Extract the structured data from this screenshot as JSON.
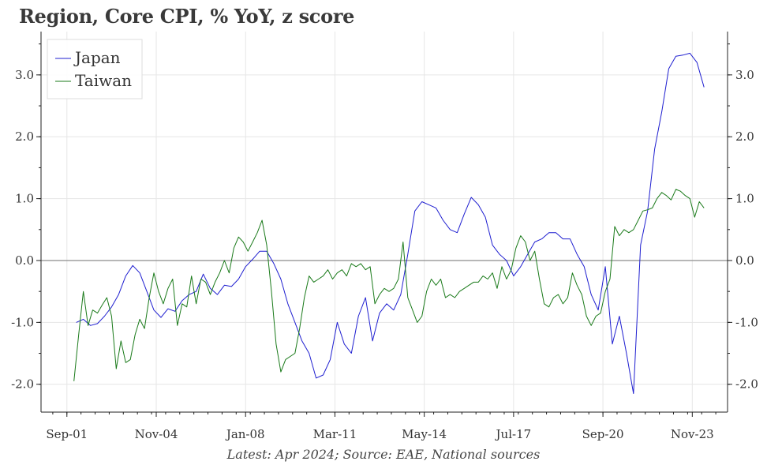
{
  "title": "Region, Core CPI, % YoY, z score",
  "footer": "Latest: Apr 2024; Source: EAE, National sources",
  "chart_data": {
    "type": "line",
    "title": "Region, Core CPI, % YoY, z score",
    "xlabel": "",
    "ylabel": "",
    "x_tick_labels": [
      "Sep-01",
      "Nov-04",
      "Jan-08",
      "Mar-11",
      "May-14",
      "Jul-17",
      "Sep-20",
      "Nov-23"
    ],
    "x_tick_dates": [
      "2001-09",
      "2004-11",
      "2008-01",
      "2011-03",
      "2014-05",
      "2017-07",
      "2020-09",
      "2023-11"
    ],
    "xlim": [
      "2000-10",
      "2025-02"
    ],
    "ylim": [
      -2.45,
      3.7
    ],
    "y_ticks": [
      -2.0,
      -1.0,
      0.0,
      1.0,
      2.0,
      3.0
    ],
    "y_tick_labels": [
      "-2.0",
      "-1.0",
      "0.0",
      "1.0",
      "2.0",
      "3.0"
    ],
    "grid": true,
    "legend_position": "top-left",
    "series": [
      {
        "name": "Japan",
        "color": "#1f1fd0",
        "points": [
          [
            "2002-01",
            -1.0
          ],
          [
            "2002-04",
            -0.95
          ],
          [
            "2002-07",
            -1.05
          ],
          [
            "2002-10",
            -1.02
          ],
          [
            "2003-01",
            -0.9
          ],
          [
            "2003-04",
            -0.75
          ],
          [
            "2003-07",
            -0.55
          ],
          [
            "2003-10",
            -0.25
          ],
          [
            "2004-01",
            -0.08
          ],
          [
            "2004-04",
            -0.2
          ],
          [
            "2004-07",
            -0.5
          ],
          [
            "2004-10",
            -0.8
          ],
          [
            "2005-01",
            -0.92
          ],
          [
            "2005-04",
            -0.78
          ],
          [
            "2005-07",
            -0.82
          ],
          [
            "2005-10",
            -0.65
          ],
          [
            "2006-01",
            -0.55
          ],
          [
            "2006-04",
            -0.5
          ],
          [
            "2006-07",
            -0.22
          ],
          [
            "2006-10",
            -0.45
          ],
          [
            "2007-01",
            -0.55
          ],
          [
            "2007-04",
            -0.4
          ],
          [
            "2007-07",
            -0.42
          ],
          [
            "2007-10",
            -0.3
          ],
          [
            "2008-01",
            -0.1
          ],
          [
            "2008-04",
            0.02
          ],
          [
            "2008-07",
            0.15
          ],
          [
            "2008-10",
            0.15
          ],
          [
            "2009-01",
            -0.05
          ],
          [
            "2009-04",
            -0.3
          ],
          [
            "2009-07",
            -0.7
          ],
          [
            "2009-10",
            -1.0
          ],
          [
            "2010-01",
            -1.3
          ],
          [
            "2010-04",
            -1.5
          ],
          [
            "2010-07",
            -1.9
          ],
          [
            "2010-10",
            -1.85
          ],
          [
            "2011-01",
            -1.6
          ],
          [
            "2011-04",
            -1.0
          ],
          [
            "2011-07",
            -1.35
          ],
          [
            "2011-10",
            -1.5
          ],
          [
            "2012-01",
            -0.9
          ],
          [
            "2012-04",
            -0.6
          ],
          [
            "2012-07",
            -1.3
          ],
          [
            "2012-10",
            -0.85
          ],
          [
            "2013-01",
            -0.7
          ],
          [
            "2013-04",
            -0.8
          ],
          [
            "2013-07",
            -0.55
          ],
          [
            "2013-10",
            0.1
          ],
          [
            "2014-01",
            0.8
          ],
          [
            "2014-04",
            0.95
          ],
          [
            "2014-07",
            0.9
          ],
          [
            "2014-10",
            0.85
          ],
          [
            "2015-01",
            0.65
          ],
          [
            "2015-04",
            0.5
          ],
          [
            "2015-07",
            0.45
          ],
          [
            "2015-10",
            0.75
          ],
          [
            "2016-01",
            1.02
          ],
          [
            "2016-04",
            0.9
          ],
          [
            "2016-07",
            0.7
          ],
          [
            "2016-10",
            0.25
          ],
          [
            "2017-01",
            0.1
          ],
          [
            "2017-04",
            0.0
          ],
          [
            "2017-07",
            -0.25
          ],
          [
            "2017-10",
            -0.1
          ],
          [
            "2018-01",
            0.1
          ],
          [
            "2018-04",
            0.3
          ],
          [
            "2018-07",
            0.35
          ],
          [
            "2018-10",
            0.45
          ],
          [
            "2019-01",
            0.45
          ],
          [
            "2019-04",
            0.35
          ],
          [
            "2019-07",
            0.35
          ],
          [
            "2019-10",
            0.1
          ],
          [
            "2020-01",
            -0.1
          ],
          [
            "2020-04",
            -0.55
          ],
          [
            "2020-07",
            -0.8
          ],
          [
            "2020-10",
            -0.1
          ],
          [
            "2021-01",
            -1.35
          ],
          [
            "2021-04",
            -0.9
          ],
          [
            "2021-07",
            -1.5
          ],
          [
            "2021-10",
            -2.15
          ],
          [
            "2022-01",
            0.25
          ],
          [
            "2022-04",
            0.8
          ],
          [
            "2022-07",
            1.8
          ],
          [
            "2022-10",
            2.4
          ],
          [
            "2023-01",
            3.1
          ],
          [
            "2023-04",
            3.3
          ],
          [
            "2023-07",
            3.32
          ],
          [
            "2023-10",
            3.35
          ],
          [
            "2024-01",
            3.2
          ],
          [
            "2024-04",
            2.8
          ]
        ]
      },
      {
        "name": "Taiwan",
        "color": "#1a7a1a",
        "points": [
          [
            "2001-12",
            -1.95
          ],
          [
            "2002-02",
            -1.2
          ],
          [
            "2002-04",
            -0.5
          ],
          [
            "2002-06",
            -1.05
          ],
          [
            "2002-08",
            -0.8
          ],
          [
            "2002-10",
            -0.85
          ],
          [
            "2002-12",
            -0.72
          ],
          [
            "2003-02",
            -0.6
          ],
          [
            "2003-04",
            -0.9
          ],
          [
            "2003-06",
            -1.75
          ],
          [
            "2003-08",
            -1.3
          ],
          [
            "2003-10",
            -1.65
          ],
          [
            "2003-12",
            -1.6
          ],
          [
            "2004-02",
            -1.2
          ],
          [
            "2004-04",
            -0.95
          ],
          [
            "2004-06",
            -1.1
          ],
          [
            "2004-08",
            -0.6
          ],
          [
            "2004-10",
            -0.2
          ],
          [
            "2004-12",
            -0.5
          ],
          [
            "2005-02",
            -0.7
          ],
          [
            "2005-04",
            -0.45
          ],
          [
            "2005-06",
            -0.3
          ],
          [
            "2005-08",
            -1.05
          ],
          [
            "2005-10",
            -0.7
          ],
          [
            "2005-12",
            -0.75
          ],
          [
            "2006-02",
            -0.25
          ],
          [
            "2006-04",
            -0.7
          ],
          [
            "2006-06",
            -0.3
          ],
          [
            "2006-08",
            -0.35
          ],
          [
            "2006-10",
            -0.55
          ],
          [
            "2006-12",
            -0.35
          ],
          [
            "2007-02",
            -0.2
          ],
          [
            "2007-04",
            0.0
          ],
          [
            "2007-06",
            -0.2
          ],
          [
            "2007-08",
            0.2
          ],
          [
            "2007-10",
            0.38
          ],
          [
            "2007-12",
            0.3
          ],
          [
            "2008-02",
            0.15
          ],
          [
            "2008-04",
            0.3
          ],
          [
            "2008-06",
            0.45
          ],
          [
            "2008-08",
            0.65
          ],
          [
            "2008-10",
            0.25
          ],
          [
            "2008-12",
            -0.5
          ],
          [
            "2009-02",
            -1.35
          ],
          [
            "2009-04",
            -1.8
          ],
          [
            "2009-06",
            -1.6
          ],
          [
            "2009-08",
            -1.55
          ],
          [
            "2009-10",
            -1.5
          ],
          [
            "2009-12",
            -1.1
          ],
          [
            "2010-02",
            -0.6
          ],
          [
            "2010-04",
            -0.25
          ],
          [
            "2010-06",
            -0.35
          ],
          [
            "2010-08",
            -0.3
          ],
          [
            "2010-10",
            -0.25
          ],
          [
            "2010-12",
            -0.15
          ],
          [
            "2011-02",
            -0.3
          ],
          [
            "2011-04",
            -0.2
          ],
          [
            "2011-06",
            -0.15
          ],
          [
            "2011-08",
            -0.25
          ],
          [
            "2011-10",
            -0.05
          ],
          [
            "2011-12",
            -0.1
          ],
          [
            "2012-02",
            -0.05
          ],
          [
            "2012-04",
            -0.15
          ],
          [
            "2012-06",
            -0.1
          ],
          [
            "2012-08",
            -0.7
          ],
          [
            "2012-10",
            -0.55
          ],
          [
            "2012-12",
            -0.45
          ],
          [
            "2013-02",
            -0.5
          ],
          [
            "2013-04",
            -0.45
          ],
          [
            "2013-06",
            -0.3
          ],
          [
            "2013-08",
            0.3
          ],
          [
            "2013-10",
            -0.6
          ],
          [
            "2013-12",
            -0.8
          ],
          [
            "2014-02",
            -1.0
          ],
          [
            "2014-04",
            -0.9
          ],
          [
            "2014-06",
            -0.5
          ],
          [
            "2014-08",
            -0.3
          ],
          [
            "2014-10",
            -0.4
          ],
          [
            "2014-12",
            -0.3
          ],
          [
            "2015-02",
            -0.6
          ],
          [
            "2015-04",
            -0.55
          ],
          [
            "2015-06",
            -0.6
          ],
          [
            "2015-08",
            -0.5
          ],
          [
            "2015-10",
            -0.45
          ],
          [
            "2015-12",
            -0.4
          ],
          [
            "2016-02",
            -0.35
          ],
          [
            "2016-04",
            -0.35
          ],
          [
            "2016-06",
            -0.25
          ],
          [
            "2016-08",
            -0.3
          ],
          [
            "2016-10",
            -0.2
          ],
          [
            "2016-12",
            -0.45
          ],
          [
            "2017-02",
            -0.1
          ],
          [
            "2017-04",
            -0.3
          ],
          [
            "2017-06",
            -0.15
          ],
          [
            "2017-08",
            0.2
          ],
          [
            "2017-10",
            0.4
          ],
          [
            "2017-12",
            0.3
          ],
          [
            "2018-02",
            0.0
          ],
          [
            "2018-04",
            0.15
          ],
          [
            "2018-06",
            -0.3
          ],
          [
            "2018-08",
            -0.7
          ],
          [
            "2018-10",
            -0.75
          ],
          [
            "2018-12",
            -0.6
          ],
          [
            "2019-02",
            -0.55
          ],
          [
            "2019-04",
            -0.7
          ],
          [
            "2019-06",
            -0.6
          ],
          [
            "2019-08",
            -0.2
          ],
          [
            "2019-10",
            -0.4
          ],
          [
            "2019-12",
            -0.55
          ],
          [
            "2020-02",
            -0.9
          ],
          [
            "2020-04",
            -1.05
          ],
          [
            "2020-06",
            -0.9
          ],
          [
            "2020-08",
            -0.85
          ],
          [
            "2020-10",
            -0.5
          ],
          [
            "2020-12",
            -0.3
          ],
          [
            "2021-02",
            0.55
          ],
          [
            "2021-04",
            0.4
          ],
          [
            "2021-06",
            0.5
          ],
          [
            "2021-08",
            0.45
          ],
          [
            "2021-10",
            0.5
          ],
          [
            "2021-12",
            0.65
          ],
          [
            "2022-02",
            0.8
          ],
          [
            "2022-04",
            0.82
          ],
          [
            "2022-06",
            0.85
          ],
          [
            "2022-08",
            1.0
          ],
          [
            "2022-10",
            1.1
          ],
          [
            "2022-12",
            1.05
          ],
          [
            "2023-02",
            0.98
          ],
          [
            "2023-04",
            1.15
          ],
          [
            "2023-06",
            1.12
          ],
          [
            "2023-08",
            1.05
          ],
          [
            "2023-10",
            1.0
          ],
          [
            "2023-12",
            0.7
          ],
          [
            "2024-02",
            0.95
          ],
          [
            "2024-04",
            0.85
          ]
        ]
      }
    ]
  }
}
